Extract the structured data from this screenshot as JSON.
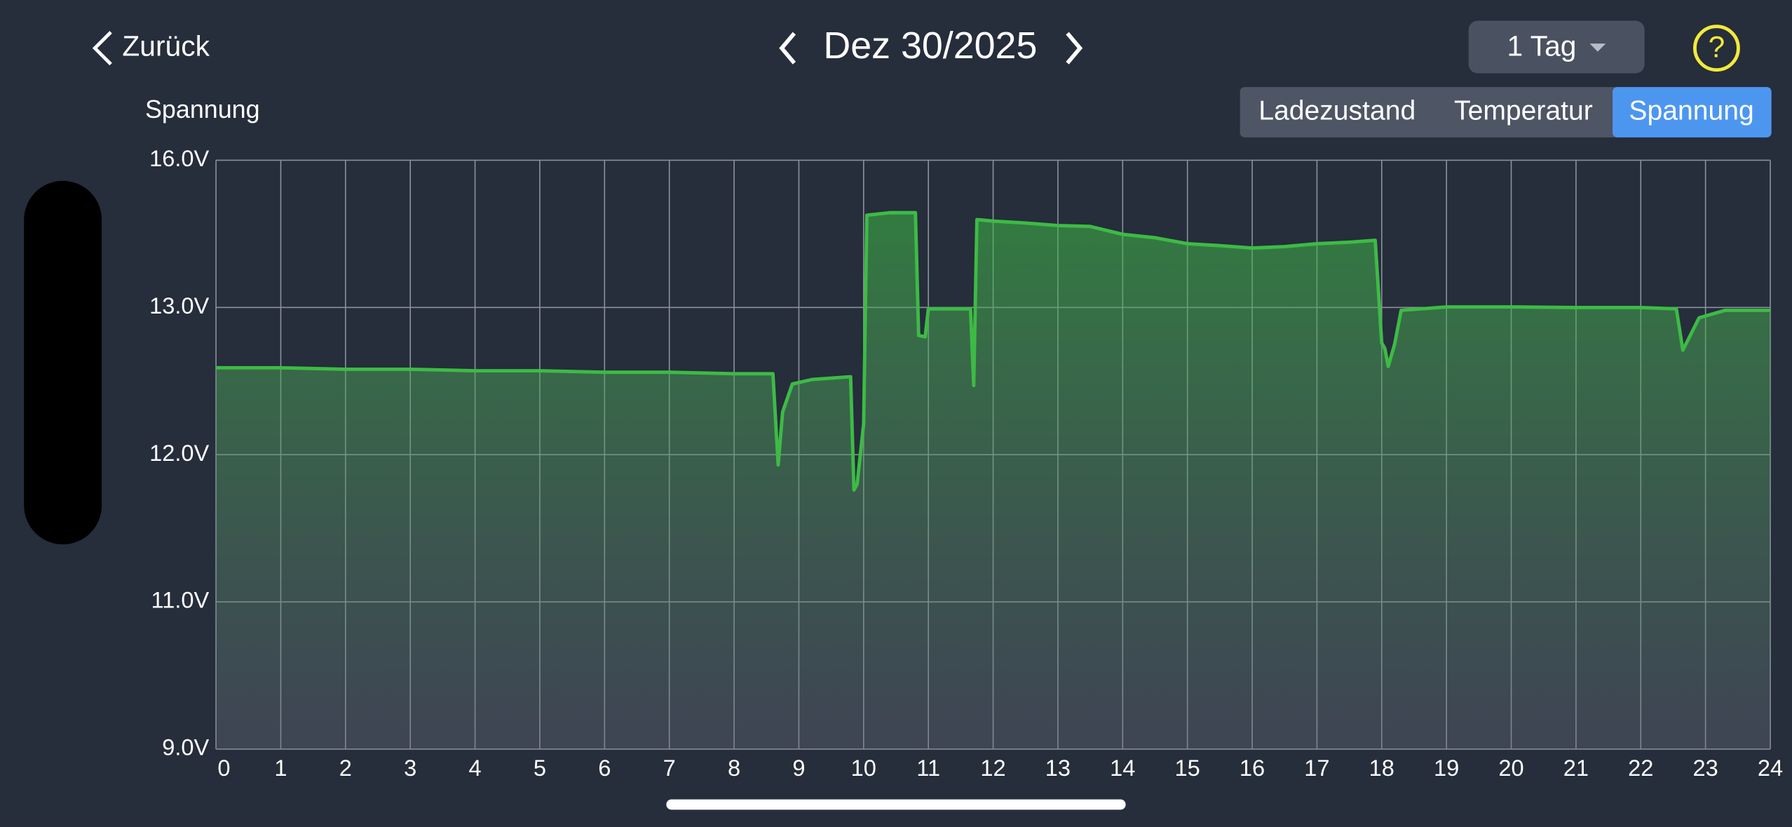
{
  "header": {
    "back": "Zurück",
    "date": "Dez 30/2025",
    "range": "1 Tag",
    "help": "?"
  },
  "tabs": [
    "Ladezustand",
    "Temperatur",
    "Spannung"
  ],
  "chart_data": {
    "type": "area",
    "title": "Spannung",
    "color": "#3dbb45",
    "grid": true,
    "x": [
      0,
      1,
      2,
      3,
      4,
      5,
      6,
      7,
      8,
      8.6,
      8.68,
      8.75,
      8.9,
      9.2,
      9.8,
      9.85,
      9.9,
      10,
      10.05,
      10.4,
      10.8,
      10.85,
      10.95,
      11,
      11.65,
      11.7,
      11.75,
      12,
      12.5,
      13,
      13.5,
      14,
      14.5,
      15,
      15.5,
      16,
      16.5,
      17,
      17.5,
      17.9,
      18,
      18.05,
      18.1,
      18.2,
      18.3,
      19,
      20,
      21,
      22,
      22.55,
      22.65,
      22.9,
      23.3,
      24
    ],
    "values": [
      12.59,
      12.59,
      12.58,
      12.58,
      12.57,
      12.57,
      12.56,
      12.56,
      12.55,
      12.55,
      11.93,
      12.29,
      12.48,
      12.51,
      12.53,
      11.76,
      11.8,
      12.21,
      14.88,
      14.93,
      14.93,
      12.81,
      12.8,
      12.99,
      12.99,
      12.47,
      14.79,
      14.76,
      14.72,
      14.67,
      14.65,
      14.49,
      14.42,
      14.3,
      14.26,
      14.21,
      14.24,
      14.3,
      14.33,
      14.37,
      12.76,
      12.72,
      12.6,
      12.75,
      12.98,
      13.01,
      13.01,
      13.0,
      13.0,
      12.99,
      12.71,
      12.93,
      12.98,
      12.98
    ],
    "xlim": [
      0,
      24
    ],
    "xticks": [
      0,
      1,
      2,
      3,
      4,
      5,
      6,
      7,
      8,
      9,
      10,
      11,
      12,
      13,
      14,
      15,
      16,
      17,
      18,
      19,
      20,
      21,
      22,
      23,
      24
    ],
    "ylim": [
      9,
      16
    ],
    "yticks": [
      {
        "value": 9,
        "label": "9.0V"
      },
      {
        "value": 11,
        "label": "11.0V"
      },
      {
        "value": 12,
        "label": "12.0V"
      },
      {
        "value": 13,
        "label": "13.0V"
      },
      {
        "value": 16,
        "label": "16.0V"
      }
    ]
  }
}
